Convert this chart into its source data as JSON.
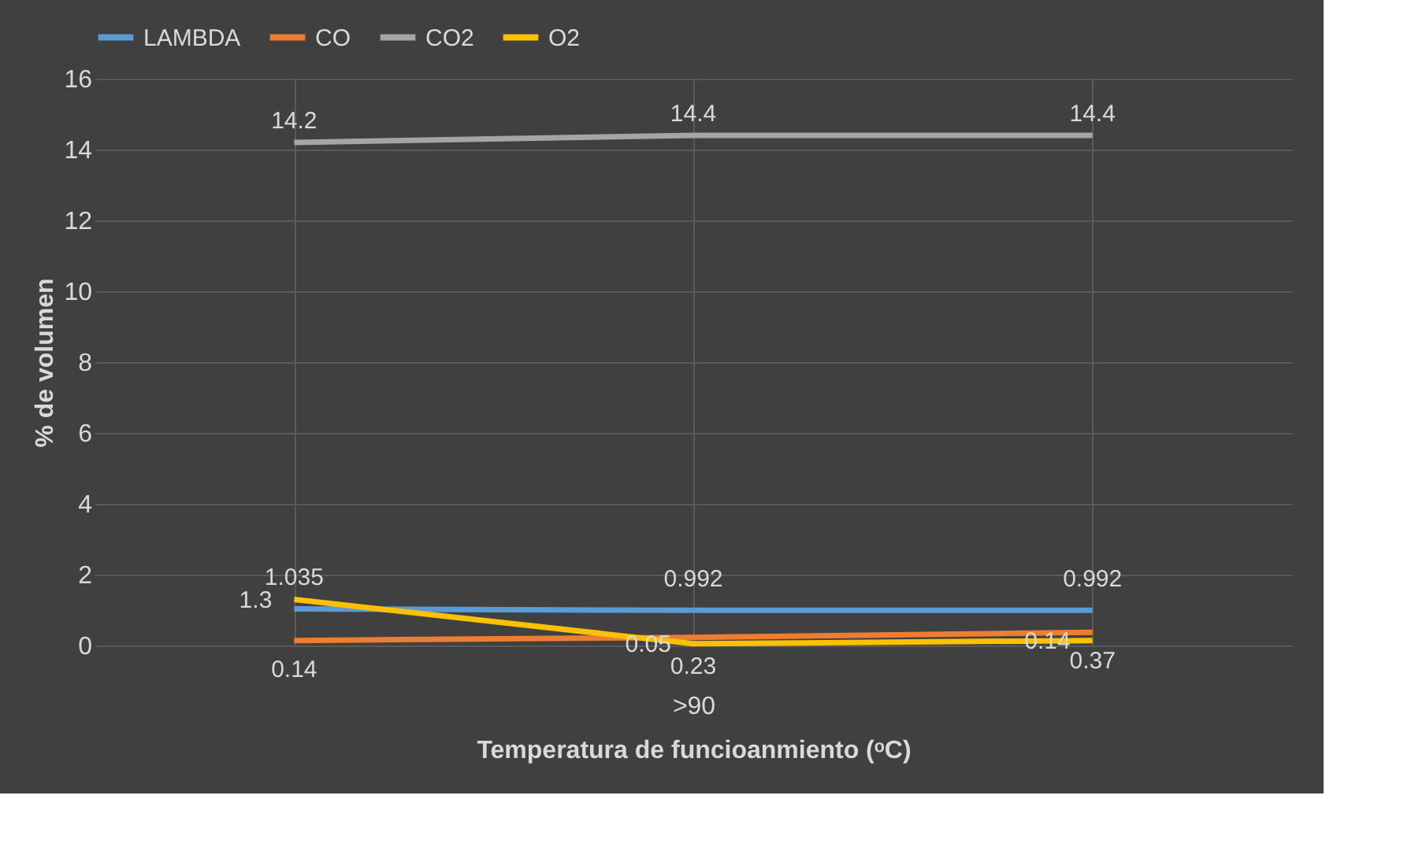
{
  "chart_data": {
    "type": "line",
    "xlabel": "Temperatura de funcioanmiento (ᵒC)",
    "ylabel": "% de volumen",
    "categories": [
      null,
      ">90",
      null
    ],
    "series": [
      {
        "name": "LAMBDA",
        "color": "#5b9bd5",
        "values": [
          1.035,
          0.992,
          0.992
        ]
      },
      {
        "name": "CO",
        "color": "#ed7d31",
        "values": [
          0.14,
          0.23,
          0.37
        ]
      },
      {
        "name": "CO2",
        "color": "#a5a5a5",
        "values": [
          14.2,
          14.4,
          14.4
        ]
      },
      {
        "name": "O2",
        "color": "#ffc000",
        "values": [
          1.3,
          0.05,
          0.14
        ]
      }
    ],
    "ylim": [
      0,
      16
    ],
    "yticks": [
      0,
      2,
      4,
      6,
      8,
      10,
      12,
      14,
      16
    ],
    "grid": true,
    "legend": "top",
    "data_labels": true,
    "marker": "none",
    "line_style": "solid"
  }
}
